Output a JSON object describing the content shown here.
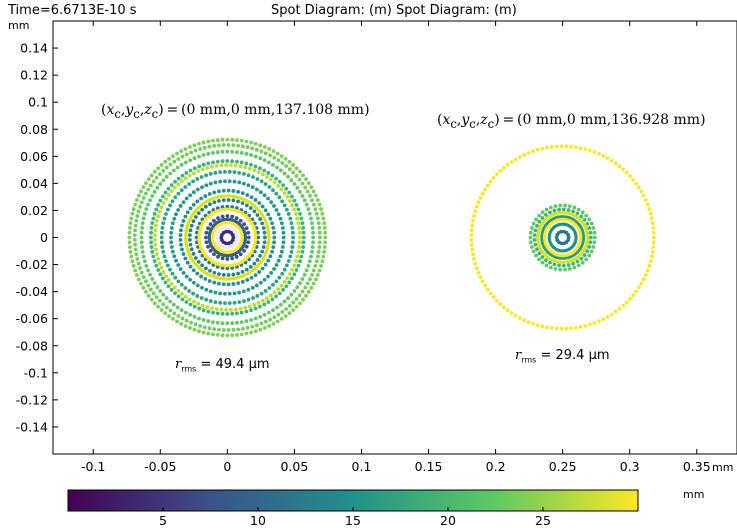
{
  "header": {
    "time_label": "Time=6.6713E-10 s",
    "title": "Spot Diagram: (m)  Spot Diagram: (m)"
  },
  "units": {
    "y": "mm",
    "x": "mm",
    "colorbar": "mm"
  },
  "chart_data": {
    "type": "scatter",
    "xlabel": "",
    "ylabel": "",
    "xlim": [
      -0.13,
      0.38
    ],
    "ylim": [
      -0.16,
      0.16
    ],
    "x_ticks": [
      -0.1,
      -0.05,
      0,
      0.05,
      0.1,
      0.15,
      0.2,
      0.25,
      0.3,
      0.35
    ],
    "x_tick_labels": [
      "-0.1",
      "-0.05",
      "0",
      "0.05",
      "0.1",
      "0.15",
      "0.2",
      "0.25",
      "0.3",
      "0.35"
    ],
    "y_ticks": [
      0.14,
      0.12,
      0.1,
      0.08,
      0.06,
      0.04,
      0.02,
      0,
      -0.02,
      -0.04,
      -0.06,
      -0.08,
      -0.1,
      -0.12,
      -0.14
    ],
    "y_tick_labels": [
      "0.14",
      "0.12",
      "0.1",
      "0.08",
      "0.06",
      "0.04",
      "0.02",
      "0",
      "-0.02",
      "-0.04",
      "-0.06",
      "-0.08",
      "-0.1",
      "-0.12",
      "-0.14"
    ],
    "grid": false,
    "colorbar": {
      "min": 0,
      "max": 30,
      "ticks": [
        5,
        10,
        15,
        20,
        25
      ],
      "tick_labels": [
        "5",
        "10",
        "15",
        "20",
        "25"
      ],
      "colormap": [
        "#440154",
        "#3b528b",
        "#21918c",
        "#5ec962",
        "#fde725"
      ]
    },
    "spots": [
      {
        "center": [
          0,
          0
        ],
        "rings": [
          {
            "r": 0.0045,
            "color": "#3e2b7a",
            "style": "dots"
          },
          {
            "r": 0.0075,
            "color": "#e8e8ff",
            "style": "solid"
          },
          {
            "r": 0.011,
            "color": "#fde725",
            "style": "solid"
          },
          {
            "r": 0.0135,
            "color": "#34618d",
            "style": "solid"
          },
          {
            "r": 0.016,
            "color": "#3b528b",
            "style": "dots"
          },
          {
            "r": 0.021,
            "color": "#fde725",
            "style": "solid"
          },
          {
            "r": 0.023,
            "color": "#2a788e",
            "style": "dots"
          },
          {
            "r": 0.028,
            "color": "#27808e",
            "style": "dots"
          },
          {
            "r": 0.031,
            "color": "#d8e219",
            "style": "solid"
          },
          {
            "r": 0.035,
            "color": "#21918c",
            "style": "dots"
          },
          {
            "r": 0.042,
            "color": "#1f9a8a",
            "style": "dots"
          },
          {
            "r": 0.049,
            "color": "#22a884",
            "style": "dots"
          },
          {
            "r": 0.054,
            "color": "#b8de29",
            "style": "dots"
          },
          {
            "r": 0.057,
            "color": "#35b779",
            "style": "dots"
          },
          {
            "r": 0.064,
            "color": "#5ec962",
            "style": "dots"
          },
          {
            "r": 0.069,
            "color": "#6ece58",
            "style": "dots"
          },
          {
            "r": 0.073,
            "color": "#7ad151",
            "style": "dots"
          }
        ],
        "centroid_text": "(x ᶜ,y ᶜ,z ᶜ) = (0 mm,0 mm,137.108 mm)",
        "centroid": {
          "x": "0 mm",
          "y": "0 mm",
          "z": "137.108 mm"
        },
        "rms_value": "49.4",
        "rms_unit": "µm"
      },
      {
        "center": [
          0.25,
          0
        ],
        "rings": [
          {
            "r": 0.0045,
            "color": "#2a788e",
            "style": "dots"
          },
          {
            "r": 0.007,
            "color": "#ffffff",
            "style": "solid"
          },
          {
            "r": 0.01,
            "color": "#21918c",
            "style": "solid"
          },
          {
            "r": 0.0135,
            "color": "#fde725",
            "style": "solid"
          },
          {
            "r": 0.0155,
            "color": "#1f9e89",
            "style": "solid"
          },
          {
            "r": 0.0185,
            "color": "#d8e219",
            "style": "solid"
          },
          {
            "r": 0.021,
            "color": "#35b779",
            "style": "dots"
          },
          {
            "r": 0.024,
            "color": "#5ec962",
            "style": "dots"
          },
          {
            "r": 0.068,
            "color": "#fde725",
            "style": "dots"
          }
        ],
        "centroid": {
          "x": "0 mm",
          "y": "0 mm",
          "z": "136.928 mm"
        },
        "rms_value": "29.4",
        "rms_unit": "µm"
      }
    ]
  }
}
